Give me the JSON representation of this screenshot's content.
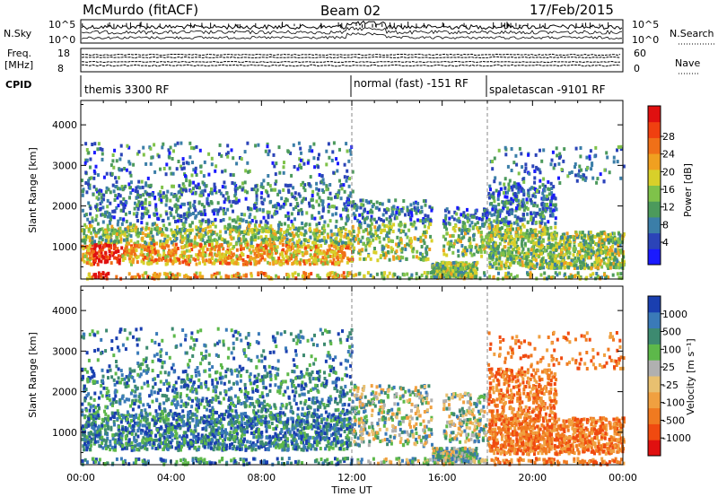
{
  "header": {
    "station": "McMurdo (fitACF)",
    "beam": "Beam 02",
    "date": "17/Feb/2015"
  },
  "noise_panel": {
    "left_label": "N.Sky",
    "right_label": "N.Search",
    "left_ticks": [
      "10^5",
      "10^0"
    ],
    "right_ticks": [
      "10^5",
      "10^0"
    ]
  },
  "freq_panel": {
    "left_label_top": "Freq.",
    "left_label_bottom": "[MHz]",
    "right_label": "Nave",
    "left_ticks": [
      "18",
      "8"
    ],
    "right_ticks": [
      "60",
      "0"
    ]
  },
  "cpid": {
    "label": "CPID",
    "segments": [
      {
        "start_hour": 0,
        "text": "themis 3300 RF"
      },
      {
        "start_hour": 12,
        "text": "normal (fast) -151 RF"
      },
      {
        "start_hour": 18,
        "text": "spaletascan -9101 RF"
      }
    ]
  },
  "chart_data": [
    {
      "type": "heatmap",
      "name": "power-rti",
      "ylabel": "Slant Range [km]",
      "yticks": [
        1000,
        2000,
        3000,
        4000
      ],
      "ytick_labels": [
        "1000",
        "2000",
        "3000",
        "4000"
      ],
      "ylim": [
        200,
        4600
      ],
      "xlim_hours": [
        0,
        24
      ],
      "colorbar": {
        "label": "Power [dB]",
        "ticks": [
          "4",
          "8",
          "12",
          "16",
          "20",
          "24",
          "28"
        ],
        "colors": [
          "#1a1aff",
          "#2b44b8",
          "#3b7ea8",
          "#4c9a5c",
          "#7fc24a",
          "#d8d02a",
          "#f0a020",
          "#f07018",
          "#f04010",
          "#e01010"
        ]
      }
    },
    {
      "type": "heatmap",
      "name": "velocity-rti",
      "ylabel": "Slant Range [km]",
      "yticks": [
        1000,
        2000,
        3000,
        4000
      ],
      "ytick_labels": [
        "1000",
        "2000",
        "3000",
        "4000"
      ],
      "ylim": [
        200,
        4600
      ],
      "xlim_hours": [
        0,
        24
      ],
      "xticks": [
        "00:00",
        "04:00",
        "08:00",
        "12:00",
        "16:00",
        "20:00",
        "00:00"
      ],
      "xlabel": "Time UT",
      "colorbar": {
        "label": "Velocity [m s⁻¹]",
        "ticks": [
          "1000",
          "500",
          "100",
          "25",
          "-25",
          "-100",
          "-500",
          "-1000"
        ],
        "colors": [
          "#1a3fb0",
          "#3a7ab8",
          "#3d8a70",
          "#5db84a",
          "#b0b0b0",
          "#e8c070",
          "#f0a040",
          "#f07a20",
          "#f04a10",
          "#e01010"
        ]
      }
    }
  ]
}
